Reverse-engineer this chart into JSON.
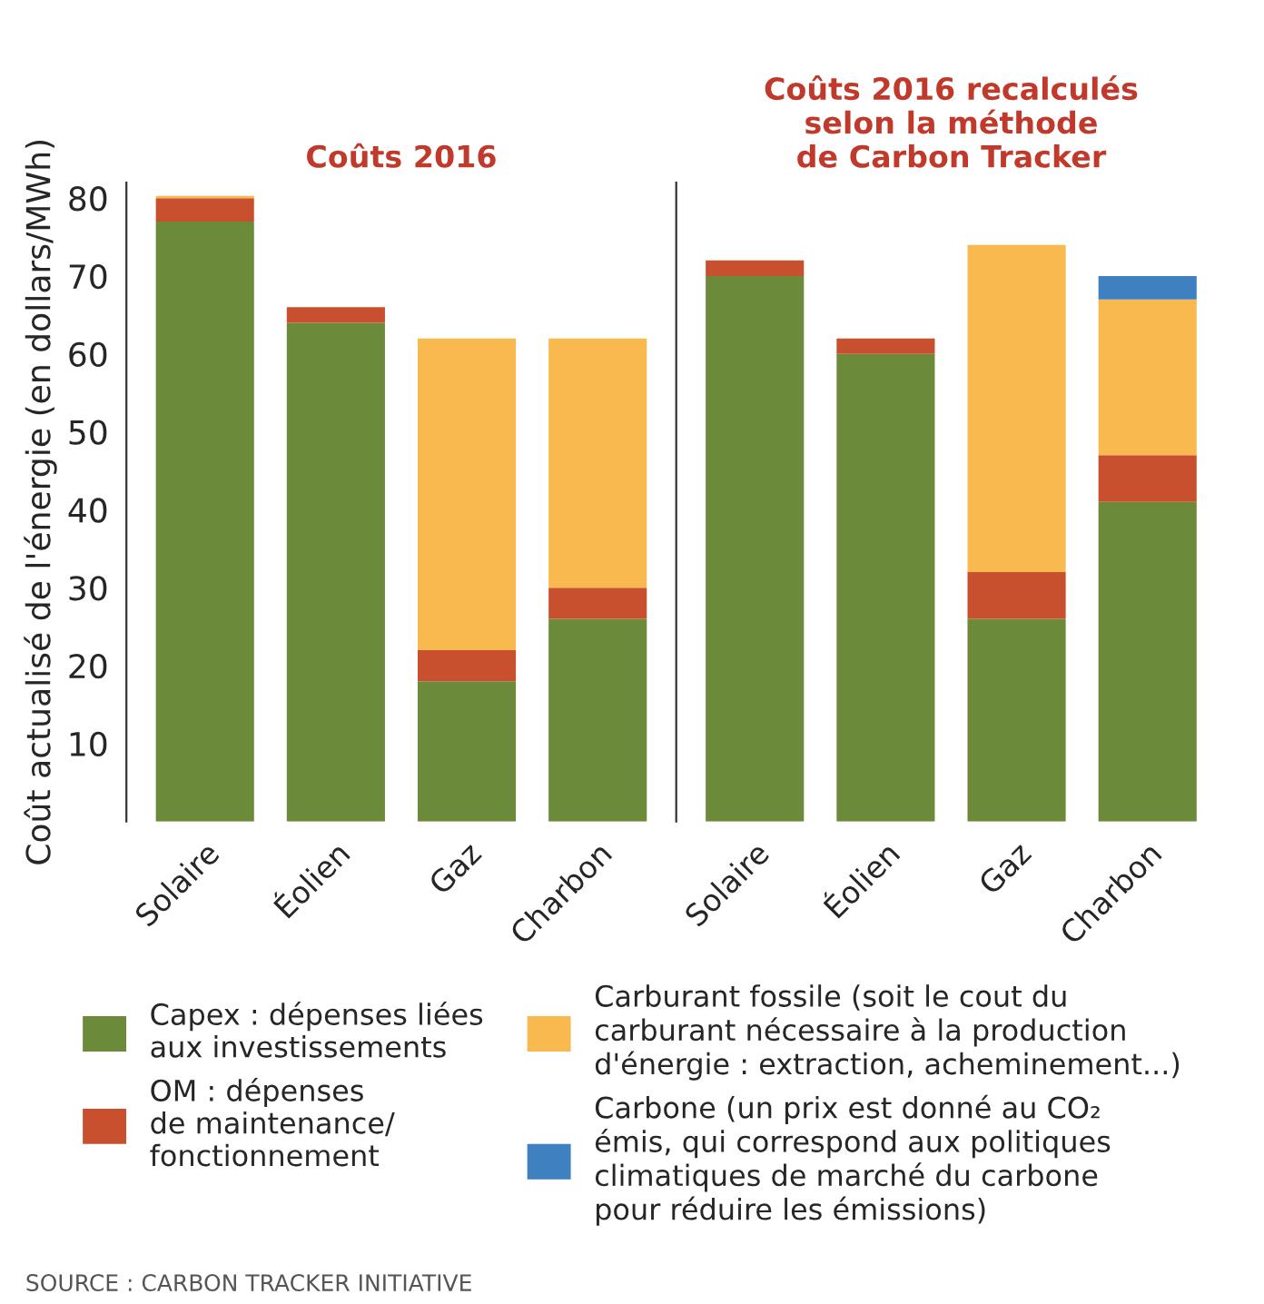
{
  "chart_data": [
    {
      "type": "bar",
      "title": "Coûts 2016",
      "ylabel": "Coût actualisé de l'énergie (en dollars/MWh)",
      "stacked": true,
      "categories": [
        "Solaire",
        "Éolien",
        "Gaz",
        "Charbon"
      ],
      "ylim": [
        0,
        82
      ],
      "yticks": [
        10,
        20,
        30,
        40,
        50,
        60,
        70,
        80
      ],
      "grid": false,
      "series": [
        {
          "color": "#6b8a3a",
          "values": [
            77,
            64,
            18,
            26
          ]
        },
        {
          "color": "#c9502e",
          "values": [
            3,
            2,
            4,
            4
          ]
        },
        {
          "color": "#f8b94f",
          "values": [
            0.3,
            null,
            40,
            32
          ]
        }
      ],
      "annotations": [
        "SOURCE : CARBON TRACKER INITIATIVE"
      ]
    },
    {
      "type": "bar",
      "title": "Coûts 2016 recalculés\nselon la méthode\nde Carbon Tracker",
      "stacked": true,
      "categories": [
        "Solaire",
        "Éolien",
        "Gaz",
        "Charbon"
      ],
      "ylim": [
        0,
        82
      ],
      "yticks": [
        10,
        20,
        30,
        40,
        50,
        60,
        70,
        80
      ],
      "tick_labels": "x",
      "grid": false,
      "legend": "bottom",
      "series": [
        {
          "name": "Capex : dépenses liées\naux investissements",
          "color": "#6b8a3a",
          "values": [
            70,
            60,
            26,
            41
          ]
        },
        {
          "name": "OM : dépenses\nde maintenance/\nfonctionnement",
          "color": "#c9502e",
          "values": [
            2,
            2,
            6,
            6
          ]
        },
        {
          "name": "Carburant fossile (soit le cout du\ncarburant nécessaire à la production\nd'énergie : extraction, acheminement...)",
          "color": "#f8b94f",
          "values": [
            null,
            null,
            42,
            20
          ]
        },
        {
          "name": "Carbone (un prix est donné au CO₂\némis, qui correspond aux politiques\nclimatiques de marché du carbone\npour réduire les émissions)",
          "color": "#3f80c0",
          "values": [
            null,
            null,
            null,
            3
          ]
        }
      ]
    }
  ]
}
